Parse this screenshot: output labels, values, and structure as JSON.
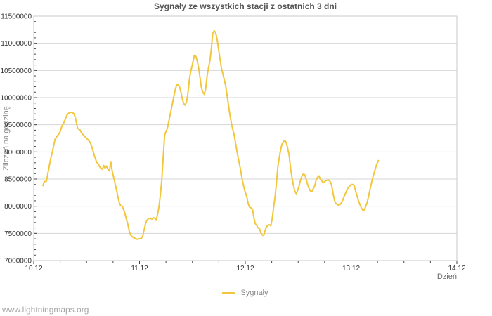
{
  "page": {
    "watermark": "www.lightningmaps.org"
  },
  "colors": {
    "series_line": "#f2c63d",
    "gridline": "#d6d6d6",
    "frame": "#c9c9c9",
    "tick": "#444444",
    "title_text": "#555555",
    "muted_text": "#8a8a8a"
  },
  "chart_data": {
    "type": "line",
    "title": "Sygnały ze wszystkich stacji z ostatnich 3 dni",
    "xlabel": "Dzień",
    "ylabel": "Zliczeń na godzinę",
    "xlim": [
      0,
      4
    ],
    "ylim": [
      7000000,
      11500000
    ],
    "x_tick_labels": [
      "10.12",
      "11.12",
      "12.12",
      "13.12",
      "14.12"
    ],
    "x_tick_positions": [
      0,
      1,
      2,
      3,
      4
    ],
    "x_minor_step": 0.25,
    "y_tick_step": 500000,
    "y_minor_step": 100000,
    "grid": "horizontal-major-only",
    "legend_position": "bottom-center",
    "x_unit": "days since 10.12",
    "series": [
      {
        "name": "Sygnały",
        "color": "#f2c63d",
        "points": [
          [
            0.087,
            8380000
          ],
          [
            0.094,
            8420000
          ],
          [
            0.1,
            8450000
          ],
          [
            0.12,
            8460000
          ],
          [
            0.134,
            8610000
          ],
          [
            0.147,
            8740000
          ],
          [
            0.161,
            8880000
          ],
          [
            0.174,
            8980000
          ],
          [
            0.187,
            9100000
          ],
          [
            0.201,
            9230000
          ],
          [
            0.221,
            9290000
          ],
          [
            0.247,
            9360000
          ],
          [
            0.268,
            9480000
          ],
          [
            0.288,
            9550000
          ],
          [
            0.314,
            9680000
          ],
          [
            0.334,
            9720000
          ],
          [
            0.361,
            9730000
          ],
          [
            0.381,
            9700000
          ],
          [
            0.395,
            9620000
          ],
          [
            0.415,
            9430000
          ],
          [
            0.435,
            9410000
          ],
          [
            0.455,
            9340000
          ],
          [
            0.475,
            9300000
          ],
          [
            0.495,
            9260000
          ],
          [
            0.515,
            9220000
          ],
          [
            0.535,
            9170000
          ],
          [
            0.555,
            9060000
          ],
          [
            0.575,
            8920000
          ],
          [
            0.595,
            8810000
          ],
          [
            0.609,
            8780000
          ],
          [
            0.622,
            8730000
          ],
          [
            0.635,
            8700000
          ],
          [
            0.649,
            8680000
          ],
          [
            0.662,
            8750000
          ],
          [
            0.676,
            8700000
          ],
          [
            0.689,
            8740000
          ],
          [
            0.702,
            8680000
          ],
          [
            0.716,
            8650000
          ],
          [
            0.729,
            8820000
          ],
          [
            0.742,
            8640000
          ],
          [
            0.763,
            8470000
          ],
          [
            0.783,
            8300000
          ],
          [
            0.796,
            8170000
          ],
          [
            0.809,
            8060000
          ],
          [
            0.823,
            8010000
          ],
          [
            0.836,
            8000000
          ],
          [
            0.85,
            7940000
          ],
          [
            0.863,
            7860000
          ],
          [
            0.876,
            7760000
          ],
          [
            0.89,
            7670000
          ],
          [
            0.903,
            7540000
          ],
          [
            0.916,
            7470000
          ],
          [
            0.936,
            7430000
          ],
          [
            0.957,
            7410000
          ],
          [
            0.977,
            7390000
          ],
          [
            0.997,
            7400000
          ],
          [
            1.017,
            7410000
          ],
          [
            1.03,
            7450000
          ],
          [
            1.043,
            7560000
          ],
          [
            1.057,
            7680000
          ],
          [
            1.07,
            7740000
          ],
          [
            1.084,
            7770000
          ],
          [
            1.104,
            7780000
          ],
          [
            1.117,
            7760000
          ],
          [
            1.13,
            7790000
          ],
          [
            1.144,
            7780000
          ],
          [
            1.157,
            7740000
          ],
          [
            1.171,
            7850000
          ],
          [
            1.184,
            7990000
          ],
          [
            1.197,
            8200000
          ],
          [
            1.211,
            8500000
          ],
          [
            1.224,
            8900000
          ],
          [
            1.237,
            9310000
          ],
          [
            1.251,
            9380000
          ],
          [
            1.264,
            9440000
          ],
          [
            1.284,
            9630000
          ],
          [
            1.298,
            9760000
          ],
          [
            1.311,
            9890000
          ],
          [
            1.324,
            10020000
          ],
          [
            1.338,
            10150000
          ],
          [
            1.351,
            10230000
          ],
          [
            1.365,
            10240000
          ],
          [
            1.378,
            10200000
          ],
          [
            1.391,
            10110000
          ],
          [
            1.405,
            9970000
          ],
          [
            1.418,
            9890000
          ],
          [
            1.431,
            9860000
          ],
          [
            1.445,
            9930000
          ],
          [
            1.458,
            10080000
          ],
          [
            1.472,
            10340000
          ],
          [
            1.485,
            10490000
          ],
          [
            1.498,
            10590000
          ],
          [
            1.512,
            10720000
          ],
          [
            1.518,
            10780000
          ],
          [
            1.532,
            10760000
          ],
          [
            1.545,
            10680000
          ],
          [
            1.559,
            10550000
          ],
          [
            1.572,
            10370000
          ],
          [
            1.585,
            10190000
          ],
          [
            1.599,
            10100000
          ],
          [
            1.612,
            10060000
          ],
          [
            1.625,
            10160000
          ],
          [
            1.639,
            10400000
          ],
          [
            1.652,
            10550000
          ],
          [
            1.666,
            10680000
          ],
          [
            1.679,
            10900000
          ],
          [
            1.692,
            11180000
          ],
          [
            1.706,
            11230000
          ],
          [
            1.719,
            11200000
          ],
          [
            1.732,
            11090000
          ],
          [
            1.753,
            10820000
          ],
          [
            1.773,
            10560000
          ],
          [
            1.793,
            10400000
          ],
          [
            1.813,
            10230000
          ],
          [
            1.833,
            9970000
          ],
          [
            1.853,
            9700000
          ],
          [
            1.873,
            9480000
          ],
          [
            1.893,
            9330000
          ],
          [
            1.913,
            9100000
          ],
          [
            1.933,
            8890000
          ],
          [
            1.953,
            8700000
          ],
          [
            1.973,
            8470000
          ],
          [
            1.993,
            8300000
          ],
          [
            2.013,
            8180000
          ],
          [
            2.027,
            8050000
          ],
          [
            2.04,
            7980000
          ],
          [
            2.054,
            7970000
          ],
          [
            2.067,
            7950000
          ],
          [
            2.08,
            7810000
          ],
          [
            2.094,
            7680000
          ],
          [
            2.107,
            7650000
          ],
          [
            2.12,
            7600000
          ],
          [
            2.134,
            7590000
          ],
          [
            2.147,
            7510000
          ],
          [
            2.161,
            7470000
          ],
          [
            2.174,
            7460000
          ],
          [
            2.187,
            7550000
          ],
          [
            2.201,
            7620000
          ],
          [
            2.214,
            7650000
          ],
          [
            2.227,
            7660000
          ],
          [
            2.241,
            7640000
          ],
          [
            2.254,
            7760000
          ],
          [
            2.268,
            7980000
          ],
          [
            2.281,
            8170000
          ],
          [
            2.294,
            8410000
          ],
          [
            2.308,
            8740000
          ],
          [
            2.321,
            8890000
          ],
          [
            2.334,
            9040000
          ],
          [
            2.348,
            9150000
          ],
          [
            2.361,
            9190000
          ],
          [
            2.375,
            9210000
          ],
          [
            2.388,
            9170000
          ],
          [
            2.401,
            9060000
          ],
          [
            2.415,
            8930000
          ],
          [
            2.428,
            8700000
          ],
          [
            2.441,
            8530000
          ],
          [
            2.455,
            8380000
          ],
          [
            2.468,
            8280000
          ],
          [
            2.482,
            8230000
          ],
          [
            2.495,
            8290000
          ],
          [
            2.508,
            8370000
          ],
          [
            2.522,
            8480000
          ],
          [
            2.535,
            8550000
          ],
          [
            2.548,
            8590000
          ],
          [
            2.562,
            8580000
          ],
          [
            2.575,
            8500000
          ],
          [
            2.589,
            8400000
          ],
          [
            2.602,
            8330000
          ],
          [
            2.615,
            8280000
          ],
          [
            2.629,
            8270000
          ],
          [
            2.642,
            8320000
          ],
          [
            2.656,
            8370000
          ],
          [
            2.669,
            8480000
          ],
          [
            2.682,
            8530000
          ],
          [
            2.696,
            8560000
          ],
          [
            2.709,
            8500000
          ],
          [
            2.722,
            8470000
          ],
          [
            2.736,
            8430000
          ],
          [
            2.749,
            8450000
          ],
          [
            2.763,
            8470000
          ],
          [
            2.776,
            8480000
          ],
          [
            2.789,
            8480000
          ],
          [
            2.803,
            8450000
          ],
          [
            2.816,
            8390000
          ],
          [
            2.829,
            8240000
          ],
          [
            2.843,
            8110000
          ],
          [
            2.856,
            8050000
          ],
          [
            2.87,
            8030000
          ],
          [
            2.883,
            8020000
          ],
          [
            2.896,
            8030000
          ],
          [
            2.91,
            8070000
          ],
          [
            2.923,
            8120000
          ],
          [
            2.936,
            8190000
          ],
          [
            2.95,
            8250000
          ],
          [
            2.963,
            8310000
          ],
          [
            2.977,
            8350000
          ],
          [
            2.99,
            8380000
          ],
          [
            3.003,
            8400000
          ],
          [
            3.017,
            8400000
          ],
          [
            3.03,
            8380000
          ],
          [
            3.043,
            8280000
          ],
          [
            3.057,
            8190000
          ],
          [
            3.07,
            8100000
          ],
          [
            3.084,
            8030000
          ],
          [
            3.097,
            7970000
          ],
          [
            3.11,
            7930000
          ],
          [
            3.124,
            7930000
          ],
          [
            3.137,
            7990000
          ],
          [
            3.151,
            8060000
          ],
          [
            3.164,
            8170000
          ],
          [
            3.177,
            8290000
          ],
          [
            3.191,
            8410000
          ],
          [
            3.204,
            8520000
          ],
          [
            3.217,
            8610000
          ],
          [
            3.231,
            8700000
          ],
          [
            3.244,
            8780000
          ],
          [
            3.258,
            8840000
          ]
        ]
      }
    ]
  }
}
